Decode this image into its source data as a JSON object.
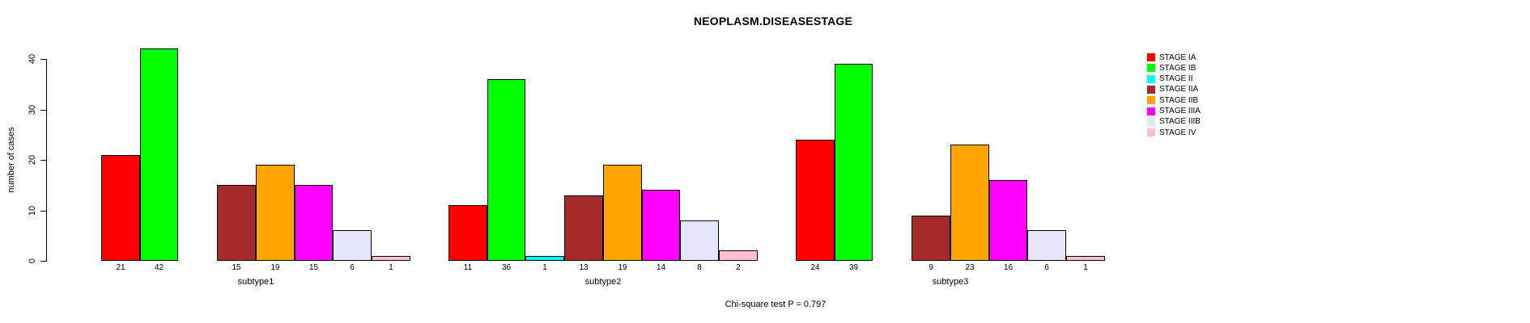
{
  "title": "NEOPLASM.DISEASESTAGE",
  "footer": "Chi-square test P = 0.797",
  "chart_data": {
    "type": "bar",
    "title": "NEOPLASM.DISEASESTAGE",
    "xlabel": "",
    "ylabel": "number of cases",
    "ylim": [
      0,
      40
    ],
    "yticks": [
      0,
      10,
      20,
      30,
      40
    ],
    "grid": false,
    "legend_position": "right",
    "bar_value_labels_shown": true,
    "categories": [
      "subtype1",
      "subtype2",
      "subtype3"
    ],
    "series": [
      {
        "name": "STAGE IA",
        "color": "#FF0000",
        "values": [
          21,
          11,
          24
        ]
      },
      {
        "name": "STAGE IB",
        "color": "#00FF00",
        "values": [
          42,
          36,
          39
        ]
      },
      {
        "name": "STAGE II",
        "color": "#00FFFF",
        "values": [
          0,
          1,
          0
        ]
      },
      {
        "name": "STAGE IIA",
        "color": "#A52A2A",
        "values": [
          15,
          13,
          9
        ]
      },
      {
        "name": "STAGE IIB",
        "color": "#FFA500",
        "values": [
          19,
          19,
          23
        ]
      },
      {
        "name": "STAGE IIIA",
        "color": "#FF00FF",
        "values": [
          15,
          14,
          16
        ]
      },
      {
        "name": "STAGE IIIB",
        "color": "#E6E6FA",
        "values": [
          6,
          8,
          6
        ]
      },
      {
        "name": "STAGE IV",
        "color": "#FFC0CB",
        "values": [
          1,
          2,
          1
        ]
      }
    ],
    "annotation": "Chi-square test P = 0.797"
  }
}
